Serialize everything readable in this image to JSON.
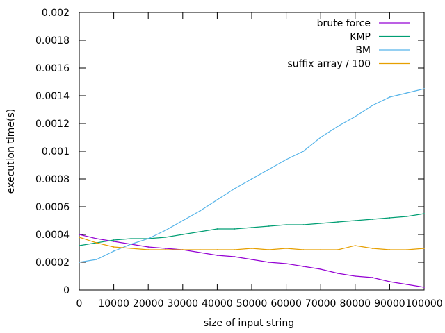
{
  "chart_data": {
    "type": "line",
    "title": "",
    "xlabel": "size of input string",
    "ylabel": "execution time(s)",
    "xlim": [
      0,
      100000
    ],
    "ylim": [
      0,
      0.002
    ],
    "xticks": [
      "0",
      "10000",
      "20000",
      "30000",
      "40000",
      "50000",
      "60000",
      "70000",
      "80000",
      "90000",
      "100000"
    ],
    "yticks": [
      "0",
      "0.0002",
      "0.0004",
      "0.0006",
      "0.0008",
      "0.001",
      "0.0012",
      "0.0014",
      "0.0016",
      "0.0018",
      "0.002"
    ],
    "legend_position": "top-right",
    "grid": false,
    "series": [
      {
        "name": "brute force",
        "color": "#9400d3",
        "x": [
          0,
          5000,
          10000,
          15000,
          20000,
          25000,
          30000,
          35000,
          40000,
          45000,
          50000,
          55000,
          60000,
          65000,
          70000,
          75000,
          80000,
          85000,
          90000,
          95000,
          100000
        ],
        "y": [
          0.0004,
          0.00037,
          0.00035,
          0.00033,
          0.00031,
          0.0003,
          0.00029,
          0.00027,
          0.00025,
          0.00024,
          0.00022,
          0.0002,
          0.00019,
          0.00017,
          0.00015,
          0.00012,
          0.0001,
          9e-05,
          6e-05,
          4e-05,
          2e-05
        ]
      },
      {
        "name": "KMP",
        "color": "#009e73",
        "x": [
          0,
          5000,
          10000,
          15000,
          20000,
          25000,
          30000,
          35000,
          40000,
          45000,
          50000,
          55000,
          60000,
          65000,
          70000,
          75000,
          80000,
          85000,
          90000,
          95000,
          100000
        ],
        "y": [
          0.00032,
          0.00034,
          0.00036,
          0.00037,
          0.00037,
          0.00038,
          0.0004,
          0.00042,
          0.00044,
          0.00044,
          0.00045,
          0.00046,
          0.00047,
          0.00047,
          0.00048,
          0.00049,
          0.0005,
          0.00051,
          0.00052,
          0.00053,
          0.00055
        ]
      },
      {
        "name": "BM",
        "color": "#56b4e9",
        "x": [
          0,
          5000,
          10000,
          15000,
          20000,
          25000,
          30000,
          35000,
          40000,
          45000,
          50000,
          55000,
          60000,
          65000,
          70000,
          75000,
          80000,
          85000,
          90000,
          95000,
          100000
        ],
        "y": [
          0.0002,
          0.00022,
          0.00028,
          0.00033,
          0.00037,
          0.00043,
          0.0005,
          0.00057,
          0.00065,
          0.00073,
          0.0008,
          0.00087,
          0.00094,
          0.001,
          0.0011,
          0.00118,
          0.00125,
          0.00133,
          0.00139,
          0.00142,
          0.00145
        ]
      },
      {
        "name": "suffix array / 100",
        "color": "#e69f00",
        "x": [
          0,
          5000,
          10000,
          15000,
          20000,
          25000,
          30000,
          35000,
          40000,
          45000,
          50000,
          55000,
          60000,
          65000,
          70000,
          75000,
          80000,
          85000,
          90000,
          95000,
          100000
        ],
        "y": [
          0.00038,
          0.00034,
          0.00031,
          0.0003,
          0.00029,
          0.00029,
          0.00029,
          0.00029,
          0.00029,
          0.00029,
          0.0003,
          0.00029,
          0.0003,
          0.00029,
          0.00029,
          0.00029,
          0.00032,
          0.0003,
          0.00029,
          0.00029,
          0.0003
        ]
      }
    ]
  }
}
